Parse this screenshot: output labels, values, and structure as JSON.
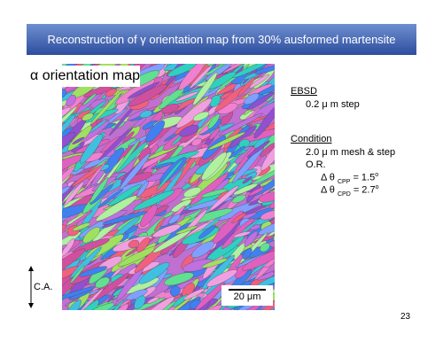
{
  "header": {
    "title": "Reconstruction of γ  orientation map from 30% ausformed martensite"
  },
  "map": {
    "label": "α orientation map",
    "scale_bar": "20 μm",
    "axis_label": "C.A."
  },
  "notes": {
    "ebsd": {
      "heading": "EBSD",
      "step": "0.2 μ m step"
    },
    "condition": {
      "heading": "Condition",
      "mesh": "2.0 μ m mesh & step",
      "or": "O.R.",
      "cpp": {
        "symbol": "Δ θ",
        "subscript": "CPP",
        "value": "= 1.5",
        "superscript": "o"
      },
      "cpd": {
        "symbol": "Δ θ",
        "subscript": "CPD",
        "value": "= 2.7",
        "superscript": "o"
      }
    }
  },
  "page_number": "23"
}
